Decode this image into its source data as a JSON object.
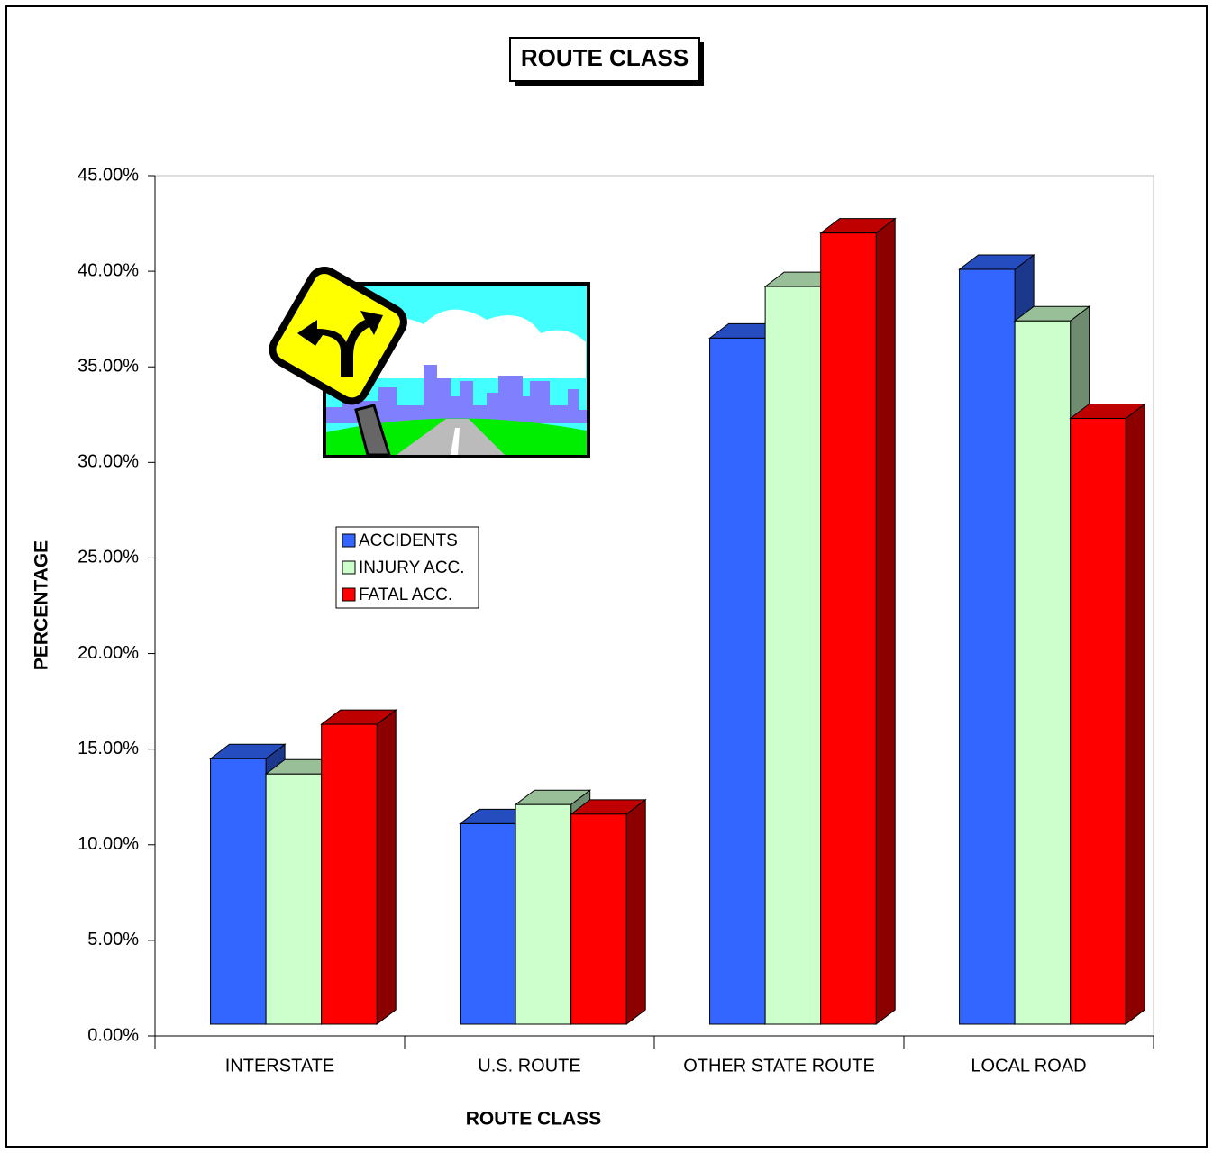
{
  "chart_data": {
    "type": "bar3d",
    "title": "ROUTE CLASS",
    "x_label": "ROUTE CLASS",
    "y_label": "PERCENTAGE",
    "categories": [
      "INTERSTATE",
      "U.S. ROUTE",
      "OTHER STATE ROUTE",
      "LOCAL ROAD"
    ],
    "series": [
      {
        "name": "ACCIDENTS",
        "color": "#3366ff",
        "values": [
          14.5,
          11.1,
          36.5,
          40.1
        ]
      },
      {
        "name": "INJURY ACC.",
        "color": "#ccffcc",
        "values": [
          13.7,
          12.1,
          39.2,
          37.4
        ]
      },
      {
        "name": "FATAL ACC.",
        "color": "#ff0000",
        "values": [
          16.3,
          11.6,
          42.0,
          32.3
        ]
      }
    ],
    "ylim": [
      0,
      45
    ],
    "yticks": [
      {
        "value": 0,
        "label": "0.00%"
      },
      {
        "value": 5,
        "label": "5.00%"
      },
      {
        "value": 10,
        "label": "10.00%"
      },
      {
        "value": 15,
        "label": "15.00%"
      },
      {
        "value": 20,
        "label": "20.00%"
      },
      {
        "value": 25,
        "label": "25.00%"
      },
      {
        "value": 30,
        "label": "30.00%"
      },
      {
        "value": 35,
        "label": "35.00%"
      },
      {
        "value": 40,
        "label": "40.00%"
      },
      {
        "value": 45,
        "label": "45.00%"
      }
    ],
    "grid": false
  }
}
